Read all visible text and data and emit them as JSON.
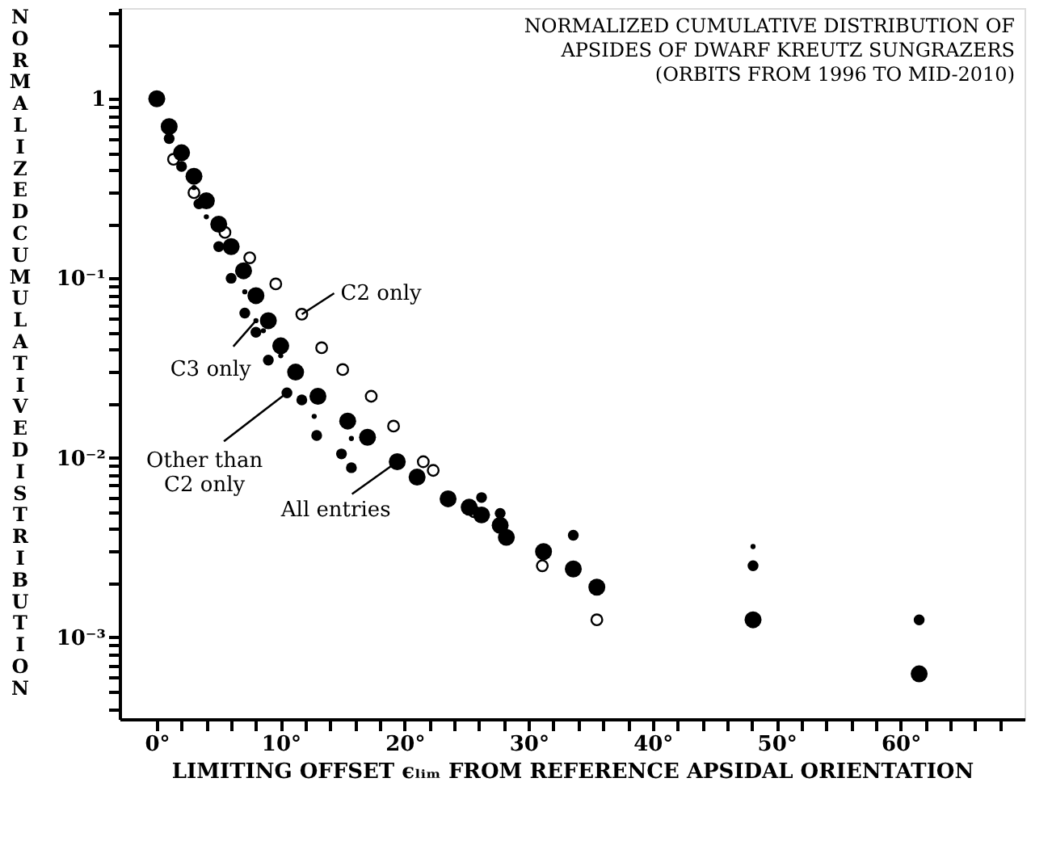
{
  "chart_data": {
    "type": "scatter",
    "title": "NORMALIZED CUMULATIVE DISTRIBUTION OF\nAPSIDES OF DWARF KREUTZ SUNGRAZERS",
    "subtitle": "(ORBITS FROM 1996 TO MID-2010)",
    "xlabel": "LIMITING OFFSET ϵₗᵢₘ FROM REFERENCE APSIDAL ORIENTATION",
    "ylabel": "NORMALIZED CUMULATIVE DISTRIBUTION",
    "log": "y",
    "grid": false,
    "marker": "circle",
    "xlim": [
      -3,
      70
    ],
    "ylim": [
      0.00035,
      3.2
    ],
    "xticks": [
      {
        "value": 0,
        "label": "0°"
      },
      {
        "value": 2,
        "label": null
      },
      {
        "value": 4,
        "label": null
      },
      {
        "value": 6,
        "label": null
      },
      {
        "value": 8,
        "label": null
      },
      {
        "value": 10,
        "label": "10°"
      },
      {
        "value": 12,
        "label": null
      },
      {
        "value": 14,
        "label": null
      },
      {
        "value": 16,
        "label": null
      },
      {
        "value": 18,
        "label": null
      },
      {
        "value": 20,
        "label": "20°"
      },
      {
        "value": 22,
        "label": null
      },
      {
        "value": 24,
        "label": null
      },
      {
        "value": 26,
        "label": null
      },
      {
        "value": 28,
        "label": null
      },
      {
        "value": 30,
        "label": "30°"
      },
      {
        "value": 32,
        "label": null
      },
      {
        "value": 34,
        "label": null
      },
      {
        "value": 36,
        "label": null
      },
      {
        "value": 38,
        "label": null
      },
      {
        "value": 40,
        "label": "40°"
      },
      {
        "value": 42,
        "label": null
      },
      {
        "value": 44,
        "label": null
      },
      {
        "value": 46,
        "label": null
      },
      {
        "value": 48,
        "label": null
      },
      {
        "value": 50,
        "label": "50°"
      },
      {
        "value": 52,
        "label": null
      },
      {
        "value": 54,
        "label": null
      },
      {
        "value": 56,
        "label": null
      },
      {
        "value": 58,
        "label": null
      },
      {
        "value": 60,
        "label": "60°"
      },
      {
        "value": 62,
        "label": null
      },
      {
        "value": 64,
        "label": null
      },
      {
        "value": 66,
        "label": null
      },
      {
        "value": 68,
        "label": null
      }
    ],
    "yticks": [
      {
        "value": 0.0004,
        "label": null
      },
      {
        "value": 0.0005,
        "label": null
      },
      {
        "value": 0.0006,
        "label": null
      },
      {
        "value": 0.0007,
        "label": null
      },
      {
        "value": 0.0008,
        "label": null
      },
      {
        "value": 0.0009,
        "label": null
      },
      {
        "value": 0.001,
        "label": "10⁻³"
      },
      {
        "value": 0.002,
        "label": null
      },
      {
        "value": 0.003,
        "label": null
      },
      {
        "value": 0.004,
        "label": null
      },
      {
        "value": 0.005,
        "label": null
      },
      {
        "value": 0.006,
        "label": null
      },
      {
        "value": 0.007,
        "label": null
      },
      {
        "value": 0.008,
        "label": null
      },
      {
        "value": 0.009,
        "label": null
      },
      {
        "value": 0.01,
        "label": "10⁻²"
      },
      {
        "value": 0.02,
        "label": null
      },
      {
        "value": 0.03,
        "label": null
      },
      {
        "value": 0.04,
        "label": null
      },
      {
        "value": 0.05,
        "label": null
      },
      {
        "value": 0.06,
        "label": null
      },
      {
        "value": 0.07,
        "label": null
      },
      {
        "value": 0.08,
        "label": null
      },
      {
        "value": 0.09,
        "label": null
      },
      {
        "value": 0.1,
        "label": "10⁻¹"
      },
      {
        "value": 0.2,
        "label": null
      },
      {
        "value": 0.3,
        "label": null
      },
      {
        "value": 0.4,
        "label": null
      },
      {
        "value": 0.5,
        "label": null
      },
      {
        "value": 0.6,
        "label": null
      },
      {
        "value": 0.7,
        "label": null
      },
      {
        "value": 0.8,
        "label": null
      },
      {
        "value": 0.9,
        "label": null
      },
      {
        "value": 1,
        "label": "1"
      },
      {
        "value": 2,
        "label": null
      },
      {
        "value": 3,
        "label": null
      }
    ],
    "series": [
      {
        "color": "#000000",
        "x": [
          0,
          1,
          2,
          3,
          4,
          5,
          6,
          7,
          8,
          9,
          10,
          11.2,
          13,
          15.4,
          17,
          19.4,
          21,
          23.5,
          25.2,
          26.2,
          27.7,
          28.2,
          31.2,
          33.6,
          35.5,
          48.1,
          61.5
        ],
        "values": [
          1,
          0.7,
          0.5,
          0.37,
          0.27,
          0.2,
          0.15,
          0.11,
          0.08,
          0.058,
          0.042,
          0.03,
          0.022,
          0.016,
          0.013,
          0.0095,
          0.0078,
          0.0059,
          0.0053,
          0.0048,
          0.0042,
          0.0036,
          0.003,
          0.0024,
          0.0019,
          0.00125,
          0.000625
        ]
      },
      {
        "color": "#000000",
        "x": [
          1.35,
          3,
          5.5,
          7.5,
          9.6,
          11.7,
          13.3,
          15,
          17.3,
          19.1,
          21.5,
          22.3,
          25.6,
          31.1,
          35.5
        ],
        "values": [
          0.46,
          0.3,
          0.18,
          0.13,
          0.093,
          0.063,
          0.041,
          0.031,
          0.022,
          0.015,
          0.0095,
          0.0085,
          0.005,
          0.0025,
          0.00125
        ]
      },
      {
        "color": "#000000",
        "x": [
          1,
          2,
          3.4,
          5,
          6,
          7.1,
          8,
          9,
          10.5,
          11.7,
          12.9,
          14.9,
          15.7,
          26.2,
          27.7,
          33.6,
          48.1,
          61.5
        ],
        "values": [
          0.6,
          0.42,
          0.26,
          0.15,
          0.1,
          0.064,
          0.05,
          0.035,
          0.023,
          0.021,
          0.0133,
          0.0105,
          0.0088,
          0.006,
          0.0049,
          0.0037,
          0.0025,
          0.00125
        ]
      },
      {
        "color": "#000000",
        "x": [
          3,
          4,
          7.1,
          8,
          8.6,
          10,
          12.7,
          15.7,
          48.1
        ],
        "values": [
          0.32,
          0.22,
          0.084,
          0.058,
          0.051,
          0.037,
          0.017,
          0.0128,
          0.0032
        ]
      }
    ],
    "annotations": [
      {
        "text": "C2 only",
        "x": 11.7,
        "y": 0.063
      },
      {
        "text": "C3 only",
        "x": 8,
        "y": 0.058
      },
      {
        "text": "Other than C2 only",
        "x": 10.5,
        "y": 0.023
      },
      {
        "text": "All entries",
        "x": 19.4,
        "y": 0.0095
      }
    ]
  }
}
